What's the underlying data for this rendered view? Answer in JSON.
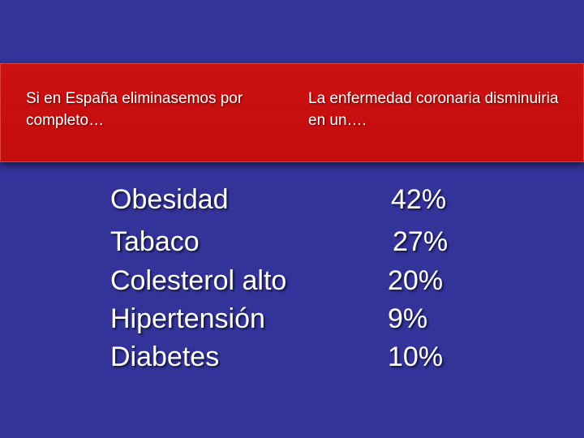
{
  "header": {
    "left": "Si en España eliminasemos por completo…",
    "right": "La enfermedad coronaria disminuiria en un…."
  },
  "factors": [
    {
      "label": "Obesidad",
      "value": "42%"
    },
    {
      "label": "Tabaco",
      "value": "27%"
    },
    {
      "label": "Colesterol alto",
      "value": "20%"
    },
    {
      "label": "Hipertensión",
      "value": "9%"
    },
    {
      "label": "Diabetes",
      "value": "10%"
    }
  ],
  "colors": {
    "background": "#333399",
    "banner": "#cc1111",
    "text": "#ffffff"
  }
}
